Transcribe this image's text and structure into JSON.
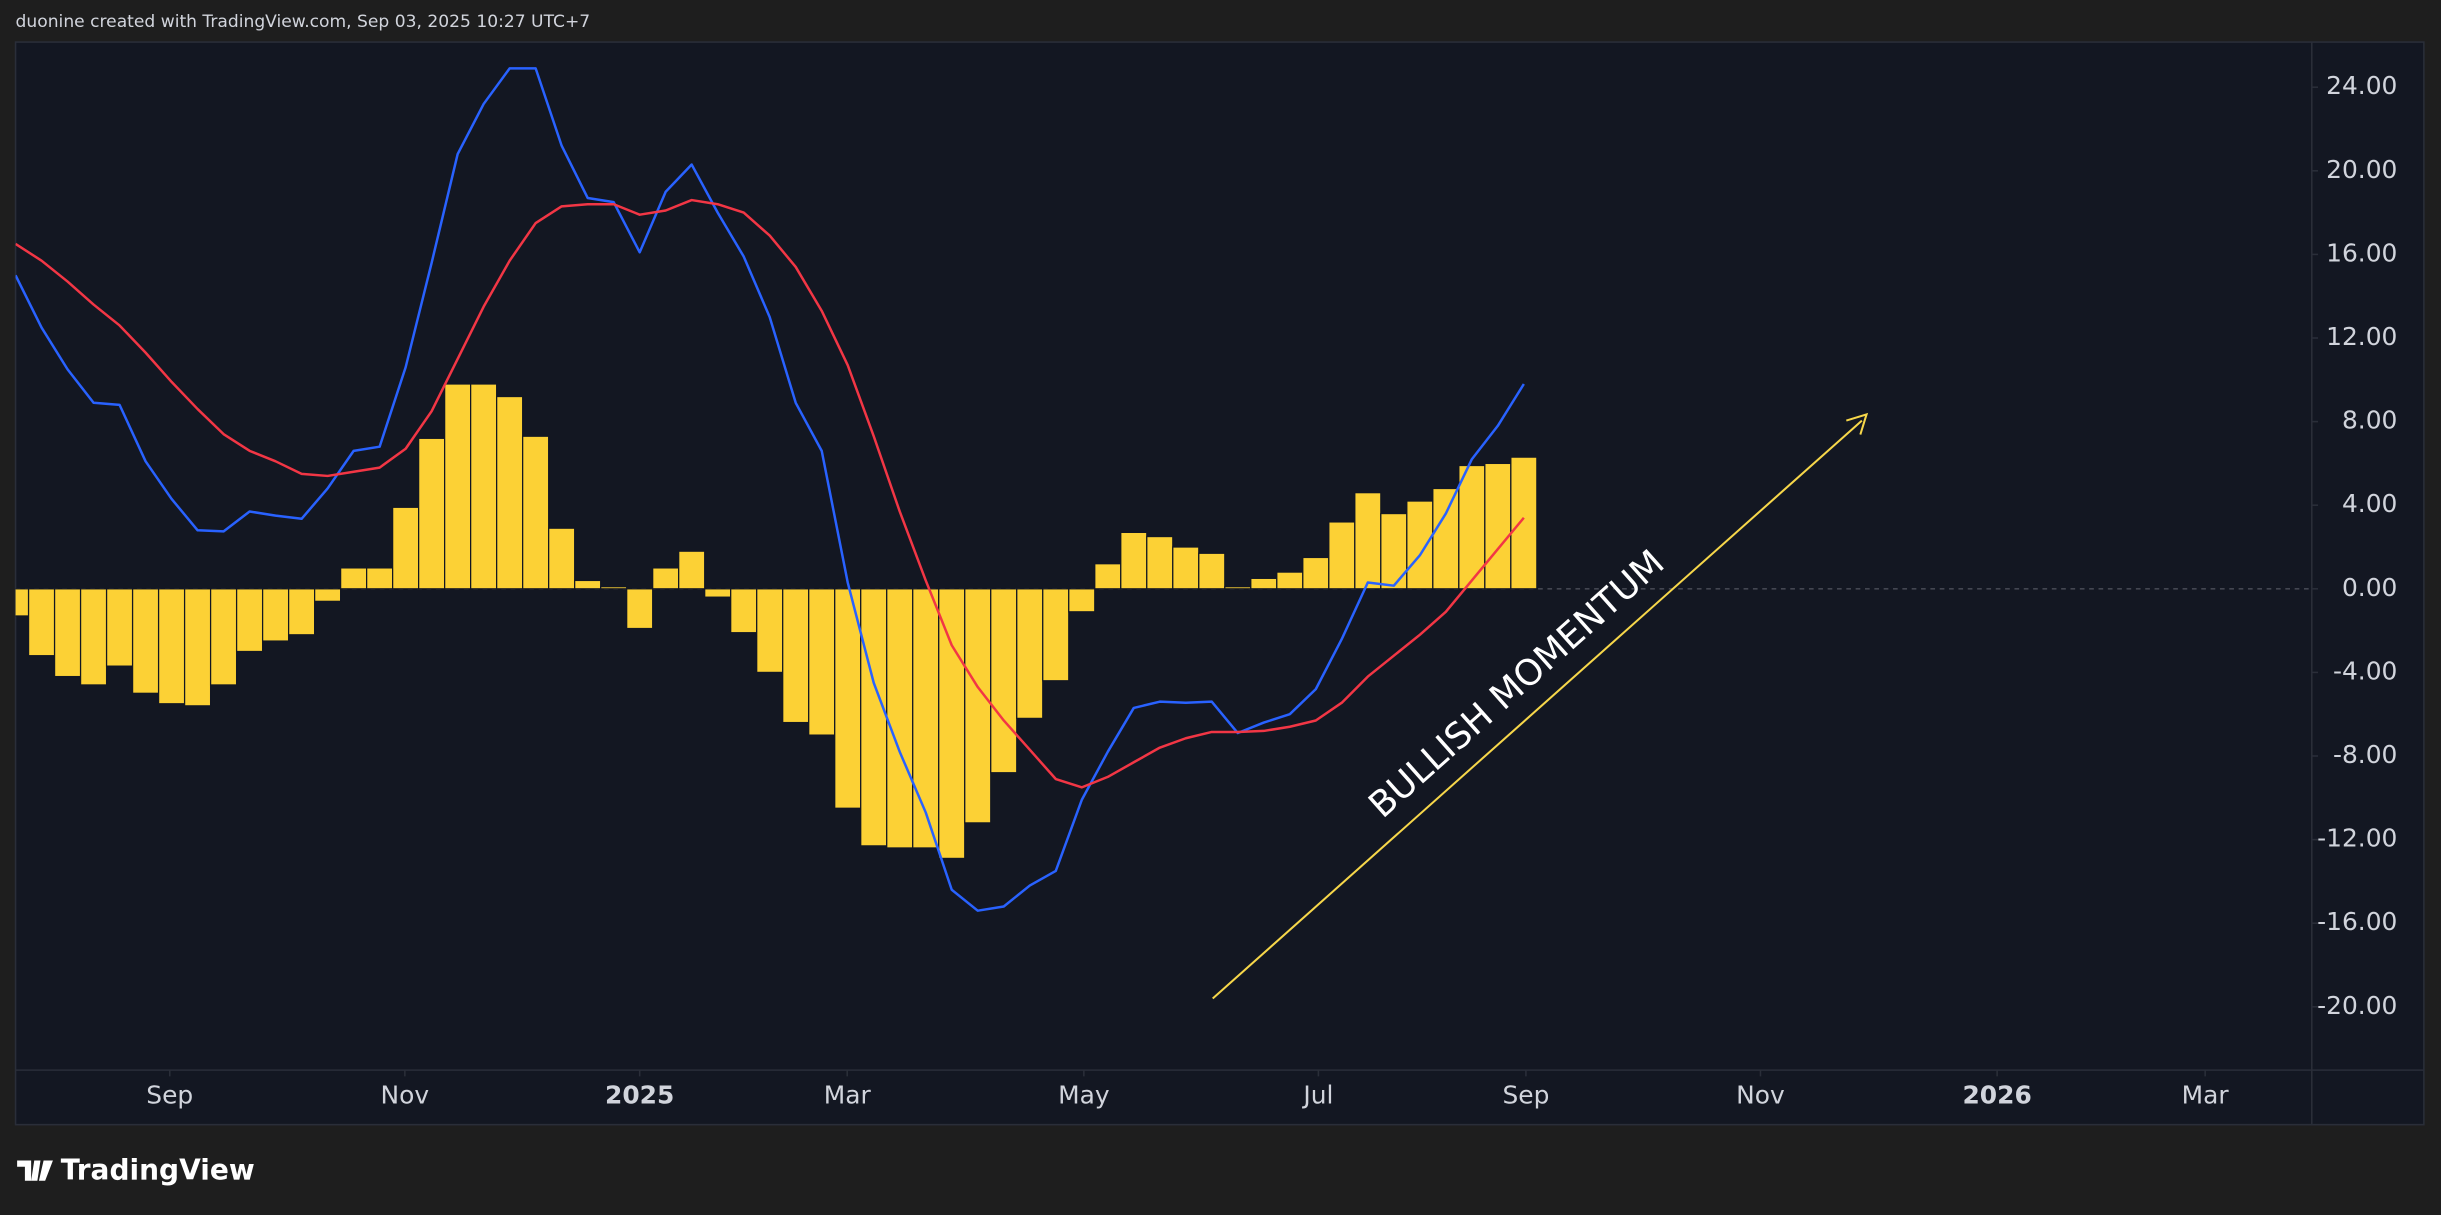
{
  "header": "duonine created with TradingView.com, Sep 03, 2025 10:27 UTC+7",
  "footer": "TradingView",
  "chart_data": {
    "type": "macd",
    "annotation": "BULLISH MOMENTUM",
    "x": [
      0,
      1,
      2,
      3,
      4,
      5,
      6,
      7,
      8,
      9,
      10,
      11,
      12,
      13,
      14,
      15,
      16,
      17,
      18,
      19,
      20,
      21,
      22,
      23,
      24,
      25,
      26,
      27,
      28,
      29,
      30,
      31,
      32,
      33,
      34,
      35,
      36,
      37,
      38,
      39,
      40,
      41,
      42,
      43,
      44,
      45,
      46,
      47,
      48,
      49,
      50,
      51,
      52,
      53,
      54,
      55,
      56,
      57,
      58
    ],
    "xlim": [
      0,
      88.3
    ],
    "xticks": [
      {
        "value": 5.93,
        "label": "Sep"
      },
      {
        "value": 14.97,
        "label": "Nov"
      },
      {
        "value": 24.0,
        "label": "2025"
      },
      {
        "value": 31.98,
        "label": "Mar"
      },
      {
        "value": 41.08,
        "label": "May"
      },
      {
        "value": 50.1,
        "label": "Jul"
      },
      {
        "value": 58.08,
        "label": "Sep"
      },
      {
        "value": 67.1,
        "label": "Nov"
      },
      {
        "value": 76.2,
        "label": "2026"
      },
      {
        "value": 84.2,
        "label": "Mar"
      }
    ],
    "ylim": [
      -23.03,
      26.16
    ],
    "yticks": [
      {
        "value": 24,
        "label": "24.00"
      },
      {
        "value": 20,
        "label": "20.00"
      },
      {
        "value": 16,
        "label": "16.00"
      },
      {
        "value": 12,
        "label": "12.00"
      },
      {
        "value": 8,
        "label": "8.00"
      },
      {
        "value": 4,
        "label": "4.00"
      },
      {
        "value": 0,
        "label": "0.00"
      },
      {
        "value": -4,
        "label": "-4.00"
      },
      {
        "value": -8,
        "label": "-8.00"
      },
      {
        "value": -12,
        "label": "-12.00"
      },
      {
        "value": -16,
        "label": "-16.00"
      },
      {
        "value": -20,
        "label": "-20.00"
      }
    ],
    "histogram": {
      "color": "#fcd135",
      "values": [
        -1.3,
        -3.2,
        -4.2,
        -4.6,
        -3.7,
        -5.0,
        -5.5,
        -5.6,
        -4.6,
        -3.0,
        -2.5,
        -2.2,
        -0.6,
        1.0,
        1.0,
        3.9,
        7.2,
        9.8,
        9.8,
        9.2,
        7.3,
        2.9,
        0.4,
        0.1,
        -1.9,
        1.0,
        1.8,
        -0.4,
        -2.1,
        -4.0,
        -6.4,
        -7.0,
        -10.5,
        -12.3,
        -12.4,
        -12.4,
        -12.9,
        -11.2,
        -8.8,
        -6.2,
        -4.4,
        -1.1,
        1.2,
        2.7,
        2.5,
        2.0,
        1.7,
        0.1,
        0.5,
        0.8,
        1.5,
        3.2,
        4.6,
        3.6,
        4.2,
        4.8,
        5.9,
        6.0,
        6.3
      ]
    },
    "series": [
      {
        "color": "#2962ff",
        "values": [
          15.0,
          12.5,
          10.5,
          8.9,
          8.8,
          6.1,
          4.3,
          2.8,
          2.75,
          3.7,
          3.5,
          3.35,
          4.8,
          6.6,
          6.8,
          10.6,
          15.6,
          20.8,
          23.2,
          24.9,
          24.9,
          21.2,
          18.7,
          18.5,
          16.1,
          19.0,
          20.3,
          18.0,
          15.9,
          13.0,
          8.9,
          6.6,
          0.3,
          -4.5,
          -7.8,
          -10.7,
          -14.4,
          -15.4,
          -15.2,
          -14.2,
          -13.5,
          -10.1,
          -7.8,
          -5.7,
          -5.4,
          -5.45,
          -5.4,
          -6.9,
          -6.4,
          -6.0,
          -4.8,
          -2.4,
          0.3,
          0.15,
          1.6,
          3.6,
          6.2,
          7.8,
          9.8
        ]
      },
      {
        "color": "#f23645",
        "values": [
          16.5,
          15.7,
          14.7,
          13.6,
          12.6,
          11.3,
          9.9,
          8.6,
          7.4,
          6.6,
          6.1,
          5.5,
          5.4,
          5.6,
          5.8,
          6.7,
          8.5,
          11.0,
          13.5,
          15.7,
          17.5,
          18.3,
          18.4,
          18.4,
          17.9,
          18.1,
          18.6,
          18.4,
          18.0,
          16.9,
          15.4,
          13.3,
          10.7,
          7.3,
          3.7,
          0.4,
          -2.7,
          -4.7,
          -6.3,
          -7.7,
          -9.1,
          -9.5,
          -9.0,
          -8.3,
          -7.6,
          -7.15,
          -6.85,
          -6.85,
          -6.8,
          -6.6,
          -6.3,
          -5.45,
          -4.2,
          -3.2,
          -2.2,
          -1.1,
          0.4,
          1.9,
          3.4
        ]
      }
    ]
  }
}
